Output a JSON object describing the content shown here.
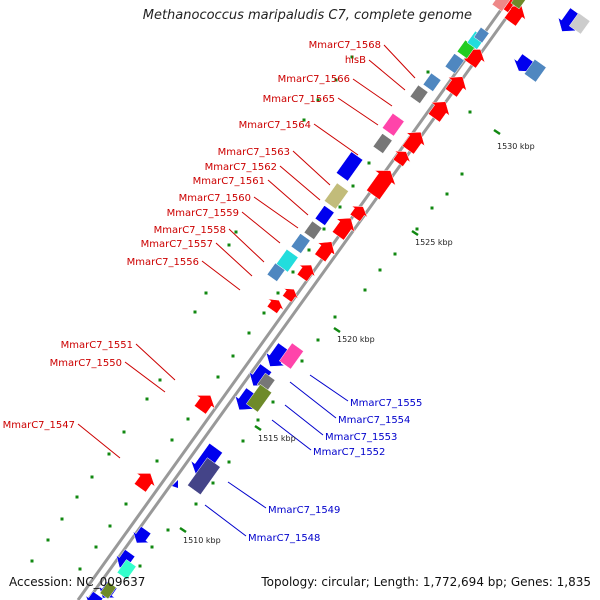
{
  "title": "Methanococcus maripaludis C7, complete genome",
  "footer": {
    "accession": "Accession: NC_009637",
    "topology": "Topology: circular; Length: 1,772,694 bp; Genes: 1,835"
  },
  "colors": {
    "backbone": "#999999",
    "forward_label": "#cc0000",
    "reverse_label": "#0000cc",
    "tick": "#118811",
    "red": "#ff0000",
    "blue": "#0000ee",
    "magenta": "#ff44aa",
    "steelblue": "#4f87c0",
    "grey": "#777777",
    "khaki": "#c2bc7a",
    "cyan": "#22dddd",
    "olive": "#6e8a2a",
    "navy": "#444488",
    "aqua": "#33ffcc",
    "pink": "#ee8888",
    "light": "#cccccc",
    "green": "#22cc22"
  },
  "scale_labels": [
    "1530 kbp",
    "1525 kbp",
    "1520 kbp",
    "1515 kbp",
    "1510 kbp"
  ],
  "labels_forward": [
    "MmarC7_1568",
    "hisB",
    "MmarC7_1566",
    "MmarC7_1565",
    "MmarC7_1564",
    "MmarC7_1563",
    "MmarC7_1562",
    "MmarC7_1561",
    "MmarC7_1560",
    "MmarC7_1559",
    "MmarC7_1558",
    "MmarC7_1557",
    "MmarC7_1556",
    "MmarC7_1551",
    "MmarC7_1550",
    "MmarC7_1547"
  ],
  "labels_reverse": [
    "MmarC7_1555",
    "MmarC7_1554",
    "MmarC7_1553",
    "MmarC7_1552",
    "MmarC7_1549",
    "MmarC7_1548"
  ]
}
